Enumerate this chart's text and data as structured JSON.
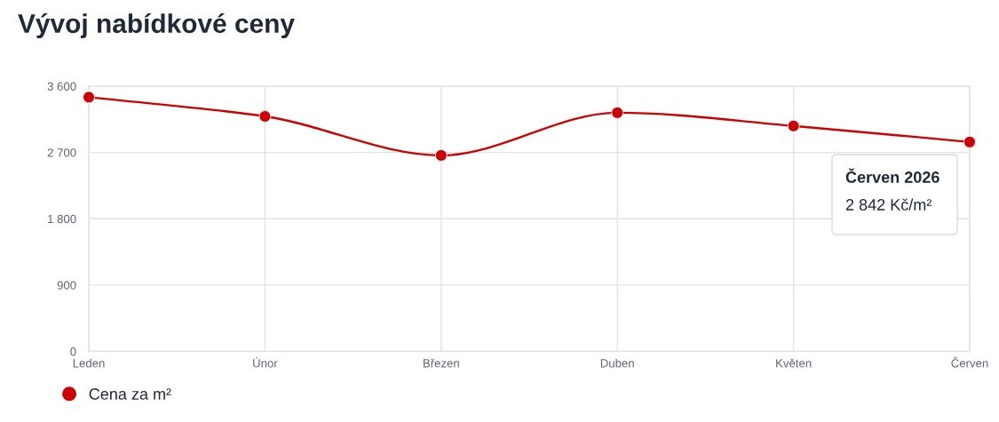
{
  "chart_data": {
    "type": "line",
    "title": "Vývoj nabídkové ceny",
    "categories": [
      "Leden",
      "Únor",
      "Březen",
      "Duben",
      "Květen",
      "Červen"
    ],
    "series": [
      {
        "name": "Cena za m²",
        "color": "#cc0000",
        "values": [
          3450,
          3190,
          2660,
          3240,
          3060,
          2842
        ]
      }
    ],
    "ylim": [
      0,
      3600
    ],
    "yticks": [
      0,
      900,
      {
        "value": 1800,
        "label": "1 800"
      },
      {
        "value": 2700,
        "label": "2 700"
      },
      {
        "value": 3600,
        "label": "3 600"
      }
    ],
    "grid": true,
    "legend": "bottom left",
    "marker": "circle",
    "line_style": "solid",
    "annotations": [
      "Červen 2026",
      "2 842 Kč/m²"
    ]
  }
}
